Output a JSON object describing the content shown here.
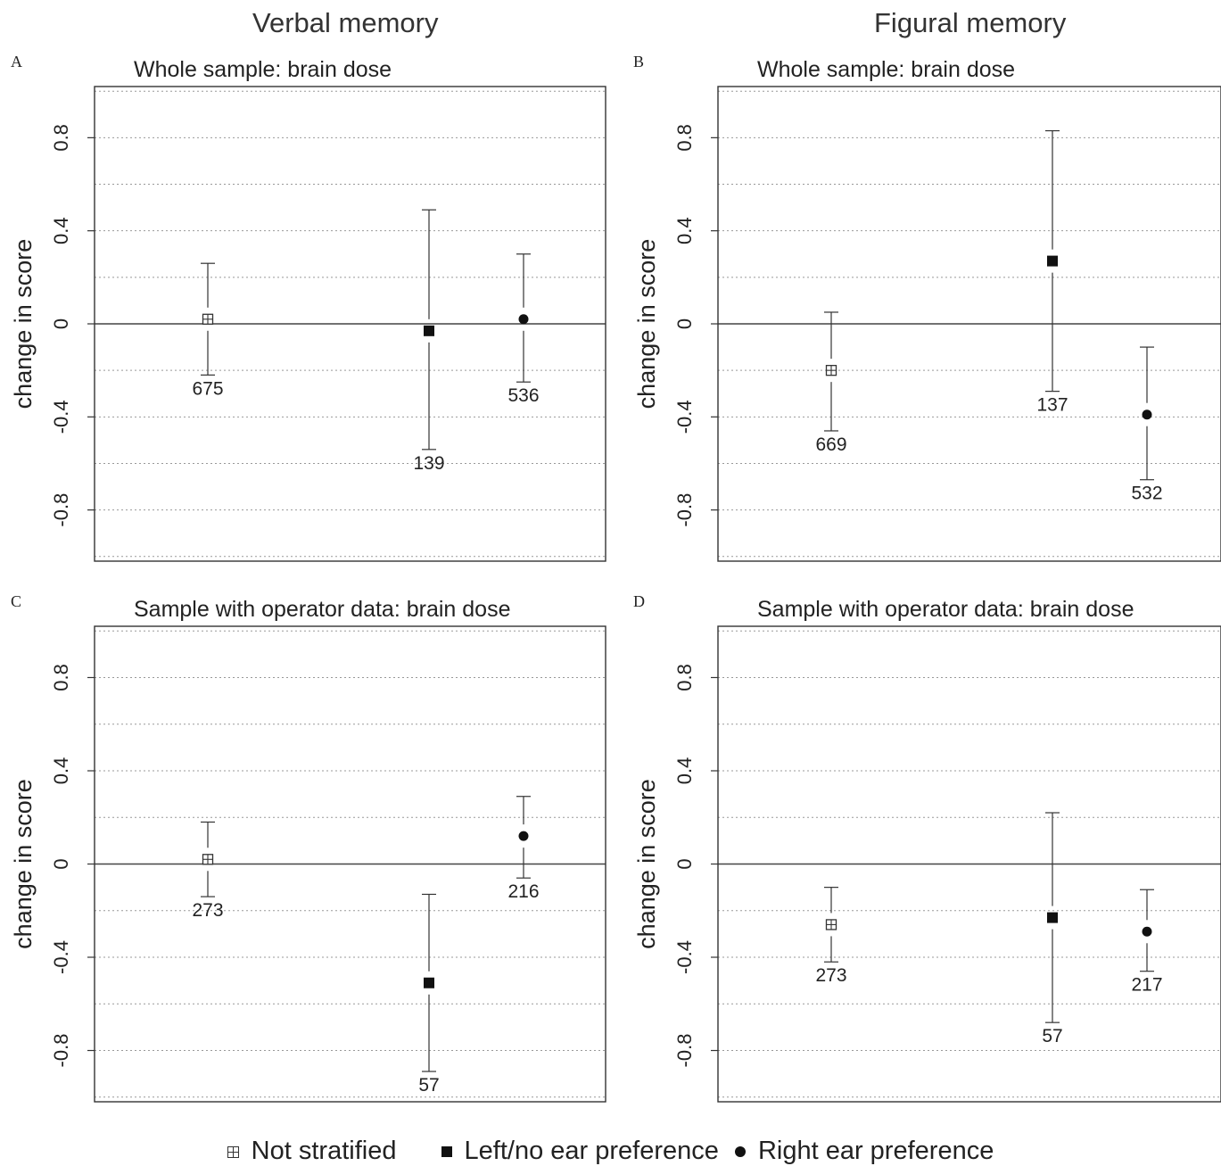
{
  "column_titles": [
    "Verbal memory",
    "Figural memory"
  ],
  "legend": [
    {
      "label": "Not stratified",
      "marker": "open-square-plus"
    },
    {
      "label": "Left/no ear preference",
      "marker": "filled-square"
    },
    {
      "label": "Right ear preference",
      "marker": "filled-circle"
    }
  ],
  "chart_data": [
    {
      "panel": "A",
      "type": "scatter",
      "title": "Whole sample: brain dose",
      "ylabel": "change in score",
      "yticks": [
        0.8,
        0.4,
        0,
        -0.4,
        -0.8
      ],
      "ytick_labels": [
        "0.8",
        "0.4",
        "0",
        "-0.4",
        "-0.8"
      ],
      "ylim": [
        -1.02,
        1.02
      ],
      "grid": "horizontal dotted",
      "series": [
        {
          "marker": "open-square-plus",
          "y": 0.02,
          "lower": -0.22,
          "upper": 0.26,
          "n_label": "675"
        },
        {
          "marker": "filled-square",
          "y": -0.03,
          "lower": -0.54,
          "upper": 0.49,
          "n_label": "139"
        },
        {
          "marker": "filled-circle",
          "y": 0.02,
          "lower": -0.25,
          "upper": 0.3,
          "n_label": "536"
        }
      ]
    },
    {
      "panel": "B",
      "type": "scatter",
      "title": "Whole sample: brain dose",
      "ylabel": "change in score",
      "yticks": [
        0.8,
        0.4,
        0,
        -0.4,
        -0.8
      ],
      "ytick_labels": [
        "0.8",
        "0.4",
        "0",
        "-0.4",
        "-0.8"
      ],
      "ylim": [
        -1.02,
        1.02
      ],
      "grid": "horizontal dotted",
      "series": [
        {
          "marker": "open-square-plus",
          "y": -0.2,
          "lower": -0.46,
          "upper": 0.05,
          "n_label": "669"
        },
        {
          "marker": "filled-square",
          "y": 0.27,
          "lower": -0.29,
          "upper": 0.83,
          "n_label": "137"
        },
        {
          "marker": "filled-circle",
          "y": -0.39,
          "lower": -0.67,
          "upper": -0.1,
          "n_label": "532"
        }
      ]
    },
    {
      "panel": "C",
      "type": "scatter",
      "title": "Sample with operator data: brain dose",
      "ylabel": "change in score",
      "yticks": [
        0.8,
        0.4,
        0,
        -0.4,
        -0.8
      ],
      "ytick_labels": [
        "0.8",
        "0.4",
        "0",
        "-0.4",
        "-0.8"
      ],
      "ylim": [
        -1.02,
        1.02
      ],
      "grid": "horizontal dotted",
      "series": [
        {
          "marker": "open-square-plus",
          "y": 0.02,
          "lower": -0.14,
          "upper": 0.18,
          "n_label": "273"
        },
        {
          "marker": "filled-square",
          "y": -0.51,
          "lower": -0.89,
          "upper": -0.13,
          "n_label": "57"
        },
        {
          "marker": "filled-circle",
          "y": 0.12,
          "lower": -0.06,
          "upper": 0.29,
          "n_label": "216"
        }
      ]
    },
    {
      "panel": "D",
      "type": "scatter",
      "title": "Sample with operator data: brain dose",
      "ylabel": "change in score",
      "yticks": [
        0.8,
        0.4,
        0,
        -0.4,
        -0.8
      ],
      "ytick_labels": [
        "0.8",
        "0.4",
        "0",
        "-0.4",
        "-0.8"
      ],
      "ylim": [
        -1.02,
        1.02
      ],
      "grid": "horizontal dotted",
      "series": [
        {
          "marker": "open-square-plus",
          "y": -0.26,
          "lower": -0.42,
          "upper": -0.1,
          "n_label": "273"
        },
        {
          "marker": "filled-square",
          "y": -0.23,
          "lower": -0.68,
          "upper": 0.22,
          "n_label": "57"
        },
        {
          "marker": "filled-circle",
          "y": -0.29,
          "lower": -0.46,
          "upper": -0.11,
          "n_label": "217"
        }
      ]
    }
  ]
}
